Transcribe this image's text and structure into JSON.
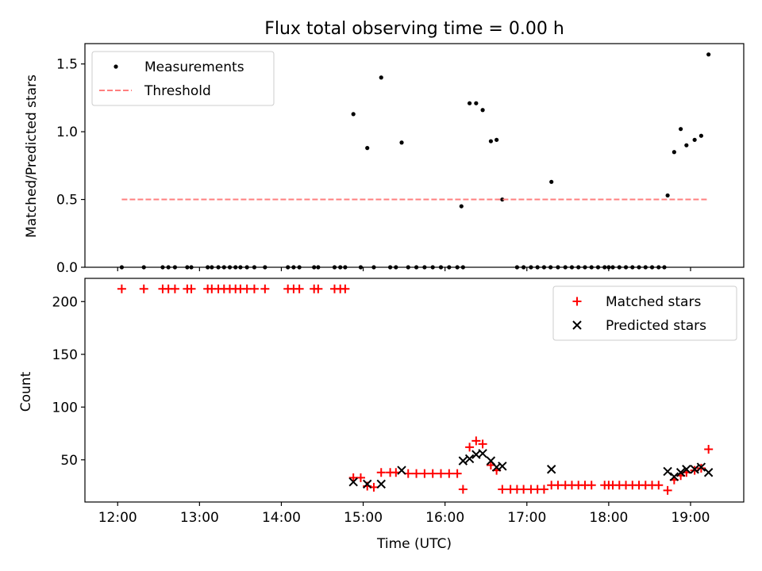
{
  "chart_data": [
    {
      "type": "scatter",
      "title": "Flux total observing time = 0.00 h",
      "xlabel": "",
      "ylabel": "Matched/Predicted stars",
      "xlim": [
        11.6,
        19.65
      ],
      "ylim": [
        0,
        1.65
      ],
      "yticks": [
        0.0,
        0.5,
        1.0,
        1.5
      ],
      "ytick_labels": [
        "0.0",
        "0.5",
        "1.0",
        "1.5"
      ],
      "xticks": [
        12,
        13,
        14,
        15,
        16,
        17,
        18,
        19
      ],
      "legend_position": "upper left",
      "series": [
        {
          "name": "Measurements",
          "kind": "scatter",
          "color": "#000000",
          "points": [
            [
              12.05,
              0
            ],
            [
              12.32,
              0
            ],
            [
              12.55,
              0
            ],
            [
              12.62,
              0
            ],
            [
              12.7,
              0
            ],
            [
              12.85,
              0
            ],
            [
              12.9,
              0
            ],
            [
              13.1,
              0
            ],
            [
              13.15,
              0
            ],
            [
              13.23,
              0
            ],
            [
              13.3,
              0
            ],
            [
              13.37,
              0
            ],
            [
              13.44,
              0
            ],
            [
              13.5,
              0
            ],
            [
              13.58,
              0
            ],
            [
              13.67,
              0
            ],
            [
              13.8,
              0
            ],
            [
              14.08,
              0
            ],
            [
              14.15,
              0
            ],
            [
              14.22,
              0
            ],
            [
              14.4,
              0
            ],
            [
              14.45,
              0
            ],
            [
              14.65,
              0
            ],
            [
              14.72,
              0
            ],
            [
              14.78,
              0
            ],
            [
              14.97,
              0
            ],
            [
              15.13,
              0
            ],
            [
              15.33,
              0
            ],
            [
              15.4,
              0
            ],
            [
              15.55,
              0
            ],
            [
              15.65,
              0
            ],
            [
              15.75,
              0
            ],
            [
              15.85,
              0
            ],
            [
              15.95,
              0
            ],
            [
              16.05,
              0
            ],
            [
              16.15,
              0
            ],
            [
              16.22,
              0
            ],
            [
              16.88,
              0
            ],
            [
              16.96,
              0
            ],
            [
              17.05,
              0
            ],
            [
              17.13,
              0
            ],
            [
              17.21,
              0
            ],
            [
              17.29,
              0
            ],
            [
              17.38,
              0
            ],
            [
              17.47,
              0
            ],
            [
              17.55,
              0
            ],
            [
              17.63,
              0
            ],
            [
              17.71,
              0
            ],
            [
              17.79,
              0
            ],
            [
              17.87,
              0
            ],
            [
              17.95,
              0
            ],
            [
              18.0,
              0
            ],
            [
              18.05,
              0
            ],
            [
              18.13,
              0
            ],
            [
              18.21,
              0
            ],
            [
              18.29,
              0
            ],
            [
              18.37,
              0
            ],
            [
              18.45,
              0
            ],
            [
              18.53,
              0
            ],
            [
              18.61,
              0
            ],
            [
              18.68,
              0
            ],
            [
              14.88,
              1.13
            ],
            [
              15.05,
              0.88
            ],
            [
              15.22,
              1.4
            ],
            [
              15.47,
              0.92
            ],
            [
              16.2,
              0.45
            ],
            [
              16.3,
              1.21
            ],
            [
              16.38,
              1.21
            ],
            [
              16.46,
              1.16
            ],
            [
              16.56,
              0.93
            ],
            [
              16.63,
              0.94
            ],
            [
              16.7,
              0.5
            ],
            [
              17.3,
              0.63
            ],
            [
              18.72,
              0.53
            ],
            [
              18.8,
              0.85
            ],
            [
              18.88,
              1.02
            ],
            [
              18.95,
              0.9
            ],
            [
              19.05,
              0.94
            ],
            [
              19.13,
              0.97
            ],
            [
              19.22,
              1.57
            ]
          ]
        },
        {
          "name": "Threshold",
          "kind": "line",
          "style": "dashed",
          "color": "#ff7f7f",
          "x": [
            12.05,
            19.22
          ],
          "y": [
            0.5,
            0.5
          ]
        }
      ]
    },
    {
      "type": "scatter",
      "title": "",
      "xlabel": "Time (UTC)",
      "ylabel": "Count",
      "xlim": [
        11.6,
        19.65
      ],
      "ylim": [
        10,
        222
      ],
      "yticks": [
        50,
        100,
        150,
        200
      ],
      "xticks": [
        12,
        13,
        14,
        15,
        16,
        17,
        18,
        19
      ],
      "xtick_labels": [
        "12:00",
        "13:00",
        "14:00",
        "15:00",
        "16:00",
        "17:00",
        "18:00",
        "19:00"
      ],
      "legend_position": "upper right",
      "series": [
        {
          "name": "Matched stars",
          "kind": "scatter",
          "marker": "plus",
          "color": "#ff0000",
          "points": [
            [
              12.05,
              212
            ],
            [
              12.32,
              212
            ],
            [
              12.55,
              212
            ],
            [
              12.62,
              212
            ],
            [
              12.7,
              212
            ],
            [
              12.85,
              212
            ],
            [
              12.9,
              212
            ],
            [
              13.1,
              212
            ],
            [
              13.15,
              212
            ],
            [
              13.23,
              212
            ],
            [
              13.3,
              212
            ],
            [
              13.37,
              212
            ],
            [
              13.44,
              212
            ],
            [
              13.5,
              212
            ],
            [
              13.58,
              212
            ],
            [
              13.67,
              212
            ],
            [
              13.8,
              212
            ],
            [
              14.08,
              212
            ],
            [
              14.15,
              212
            ],
            [
              14.22,
              212
            ],
            [
              14.4,
              212
            ],
            [
              14.45,
              212
            ],
            [
              14.65,
              212
            ],
            [
              14.72,
              212
            ],
            [
              14.78,
              212
            ],
            [
              14.88,
              33
            ],
            [
              14.97,
              33
            ],
            [
              15.05,
              25
            ],
            [
              15.13,
              24
            ],
            [
              15.22,
              38
            ],
            [
              15.33,
              38
            ],
            [
              15.4,
              38
            ],
            [
              15.55,
              37
            ],
            [
              15.65,
              37
            ],
            [
              15.75,
              37
            ],
            [
              15.85,
              37
            ],
            [
              15.95,
              37
            ],
            [
              16.05,
              37
            ],
            [
              16.15,
              37
            ],
            [
              16.22,
              22
            ],
            [
              16.3,
              62
            ],
            [
              16.38,
              68
            ],
            [
              16.46,
              65
            ],
            [
              16.56,
              45
            ],
            [
              16.63,
              40
            ],
            [
              16.7,
              22
            ],
            [
              16.8,
              22
            ],
            [
              16.88,
              22
            ],
            [
              16.96,
              22
            ],
            [
              17.05,
              22
            ],
            [
              17.13,
              22
            ],
            [
              17.21,
              22
            ],
            [
              17.3,
              26
            ],
            [
              17.38,
              26
            ],
            [
              17.47,
              26
            ],
            [
              17.55,
              26
            ],
            [
              17.63,
              26
            ],
            [
              17.71,
              26
            ],
            [
              17.79,
              26
            ],
            [
              17.95,
              26
            ],
            [
              18.0,
              26
            ],
            [
              18.05,
              26
            ],
            [
              18.13,
              26
            ],
            [
              18.21,
              26
            ],
            [
              18.29,
              26
            ],
            [
              18.37,
              26
            ],
            [
              18.45,
              26
            ],
            [
              18.53,
              26
            ],
            [
              18.61,
              26
            ],
            [
              18.72,
              21
            ],
            [
              18.8,
              31
            ],
            [
              18.88,
              35
            ],
            [
              18.95,
              38
            ],
            [
              19.05,
              40
            ],
            [
              19.13,
              42
            ],
            [
              19.22,
              60
            ]
          ]
        },
        {
          "name": "Predicted stars",
          "kind": "scatter",
          "marker": "x",
          "color": "#000000",
          "points": [
            [
              14.88,
              29
            ],
            [
              15.05,
              27
            ],
            [
              15.22,
              27
            ],
            [
              15.47,
              40
            ],
            [
              16.22,
              49
            ],
            [
              16.3,
              51
            ],
            [
              16.38,
              55
            ],
            [
              16.46,
              56
            ],
            [
              16.56,
              49
            ],
            [
              16.63,
              43
            ],
            [
              16.7,
              44
            ],
            [
              17.3,
              41
            ],
            [
              18.72,
              39
            ],
            [
              18.8,
              34
            ],
            [
              18.88,
              38
            ],
            [
              18.95,
              41
            ],
            [
              19.05,
              41
            ],
            [
              19.13,
              43
            ],
            [
              19.22,
              38
            ]
          ]
        }
      ]
    }
  ]
}
